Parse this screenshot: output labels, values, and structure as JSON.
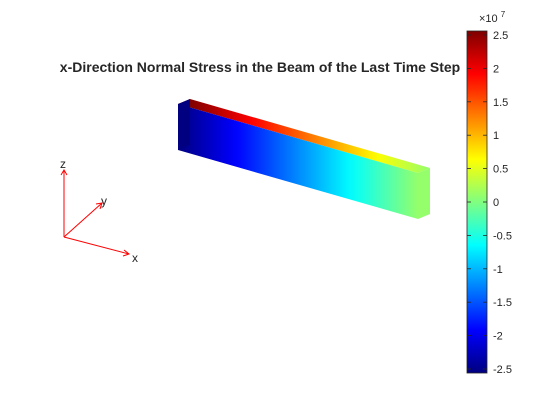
{
  "chart_data": {
    "type": "heatmap",
    "title": "x-Direction Normal Stress in the Beam of the Last Time Step",
    "colormap": "jet",
    "colorbar": {
      "multiplier": "×10",
      "exponent": "7",
      "clim": [
        -2.5,
        2.5
      ],
      "ticks": [
        2.5,
        2,
        1.5,
        1,
        0.5,
        0,
        -0.5,
        -1,
        -1.5,
        -2,
        -2.5
      ],
      "tick_labels": [
        "2.5",
        "2",
        "1.5",
        "1",
        "0.5",
        "0",
        "-0.5",
        "-1",
        "-1.5",
        "-2",
        "-2.5"
      ]
    },
    "beam": {
      "front_face_value_range": [
        -2.5,
        0.1
      ],
      "top_face_value_range": [
        2.5,
        0.1
      ],
      "end_face_value": 0.1
    },
    "triad": {
      "labels": {
        "x": "x",
        "y": "y",
        "z": "z"
      },
      "color": "#ff0000"
    }
  }
}
